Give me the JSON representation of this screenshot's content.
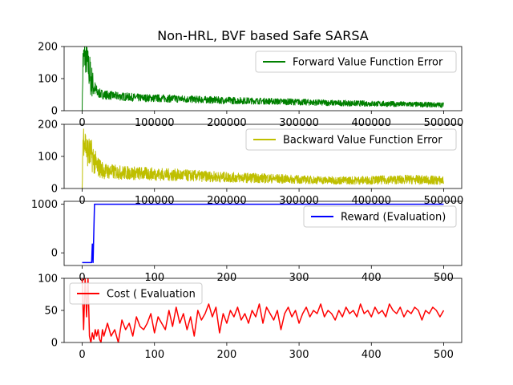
{
  "title": "Non-HRL, BVF based Safe SARSA",
  "chart_data": [
    {
      "type": "line",
      "series": [
        {
          "name": "Forward Value Function Error",
          "color": "#008000",
          "noise": true,
          "x": [
            0,
            1000,
            3000,
            6000,
            10000,
            12000,
            15000,
            18000,
            22000,
            30000,
            50000,
            80000,
            120000,
            160000,
            200000,
            250000,
            300000,
            350000,
            400000,
            450000,
            500000
          ],
          "values": [
            0,
            150,
            170,
            160,
            120,
            100,
            80,
            65,
            55,
            50,
            45,
            40,
            38,
            35,
            32,
            30,
            27,
            24,
            22,
            20,
            18
          ],
          "spread": [
            0,
            60,
            50,
            50,
            60,
            60,
            40,
            25,
            15,
            14,
            13,
            12,
            12,
            11,
            11,
            10,
            10,
            9,
            9,
            8,
            8
          ]
        }
      ],
      "xlim": [
        -25000,
        525000
      ],
      "ylim": [
        0,
        200
      ],
      "xticks": [
        0,
        100000,
        200000,
        300000,
        400000,
        500000
      ],
      "xtick_labels": [
        "0",
        "100000",
        "200000",
        "300000",
        "400000",
        "500000"
      ],
      "yticks": [
        0,
        100,
        200
      ],
      "ytick_labels": [
        "0",
        "100",
        "200"
      ],
      "legend": "upper-right"
    },
    {
      "type": "line",
      "series": [
        {
          "name": "Backward Value Function Error",
          "color": "#bfbf00",
          "noise": true,
          "x": [
            0,
            1000,
            3000,
            6000,
            10000,
            14000,
            20000,
            30000,
            50000,
            100000,
            150000,
            200000,
            250000,
            300000,
            350000,
            400000,
            450000,
            500000
          ],
          "values": [
            0,
            150,
            160,
            120,
            110,
            100,
            70,
            55,
            50,
            45,
            40,
            35,
            32,
            28,
            25,
            26,
            28,
            25
          ],
          "spread": [
            0,
            60,
            50,
            50,
            50,
            50,
            35,
            25,
            22,
            20,
            18,
            16,
            15,
            13,
            12,
            13,
            14,
            14
          ]
        }
      ],
      "xlim": [
        -25000,
        525000
      ],
      "ylim": [
        0,
        200
      ],
      "xticks": [
        0,
        100000,
        200000,
        300000,
        400000,
        500000
      ],
      "xtick_labels": [
        "0",
        "100000",
        "200000",
        "300000",
        "400000",
        "500000"
      ],
      "yticks": [
        0,
        100,
        200
      ],
      "ytick_labels": [
        "0",
        "100",
        "200"
      ],
      "legend": "upper-right"
    },
    {
      "type": "line",
      "series": [
        {
          "name": "Reward (Evaluation)",
          "color": "#0000ff",
          "noise": false,
          "x": [
            0,
            13,
            14,
            15,
            16,
            17,
            18,
            500
          ],
          "values": [
            -200,
            -200,
            180,
            -200,
            400,
            1000,
            1000,
            1000
          ]
        }
      ],
      "xlim": [
        -25,
        525
      ],
      "ylim": [
        -260,
        1060
      ],
      "xticks": [
        0,
        100,
        200,
        300,
        400,
        500
      ],
      "xtick_labels": [
        "0",
        "100",
        "200",
        "300",
        "400",
        "500"
      ],
      "yticks": [
        0,
        1000
      ],
      "ytick_labels": [
        "0",
        "1000"
      ],
      "legend": "upper-right"
    },
    {
      "type": "line",
      "series": [
        {
          "name": "Cost ( Evaluation",
          "color": "#ff0000",
          "noise": false,
          "x": [
            0,
            2,
            4,
            6,
            8,
            10,
            12,
            14,
            16,
            18,
            20,
            22,
            24,
            26,
            28,
            30,
            35,
            40,
            45,
            50,
            55,
            60,
            65,
            70,
            75,
            80,
            85,
            90,
            95,
            100,
            105,
            110,
            115,
            120,
            125,
            130,
            135,
            140,
            145,
            150,
            155,
            160,
            165,
            170,
            175,
            180,
            185,
            190,
            195,
            200,
            205,
            210,
            215,
            220,
            225,
            230,
            235,
            240,
            245,
            250,
            255,
            260,
            265,
            270,
            275,
            280,
            285,
            290,
            295,
            300,
            305,
            310,
            315,
            320,
            325,
            330,
            335,
            340,
            345,
            350,
            355,
            360,
            365,
            370,
            375,
            380,
            385,
            390,
            395,
            400,
            405,
            410,
            415,
            420,
            425,
            430,
            435,
            440,
            445,
            450,
            455,
            460,
            465,
            470,
            475,
            480,
            485,
            490,
            495,
            500
          ],
          "values": [
            100,
            20,
            100,
            40,
            100,
            10,
            0,
            15,
            5,
            20,
            10,
            20,
            5,
            0,
            20,
            10,
            30,
            10,
            20,
            0,
            35,
            20,
            30,
            10,
            40,
            25,
            20,
            30,
            45,
            15,
            40,
            30,
            20,
            50,
            25,
            55,
            30,
            45,
            20,
            40,
            10,
            50,
            35,
            45,
            60,
            40,
            55,
            15,
            45,
            30,
            50,
            40,
            55,
            35,
            45,
            30,
            50,
            40,
            60,
            30,
            55,
            45,
            35,
            50,
            20,
            45,
            55,
            40,
            50,
            30,
            45,
            55,
            40,
            50,
            45,
            60,
            40,
            50,
            45,
            35,
            50,
            40,
            55,
            45,
            50,
            40,
            60,
            45,
            50,
            40,
            55,
            45,
            50,
            40,
            60,
            50,
            45,
            55,
            40,
            50,
            45,
            55,
            50,
            35,
            50,
            45,
            55,
            50,
            40,
            50
          ]
        }
      ],
      "xlim": [
        -25,
        525
      ],
      "ylim": [
        0,
        100
      ],
      "xticks": [
        0,
        100,
        200,
        300,
        400,
        500
      ],
      "xtick_labels": [
        "0",
        "100",
        "200",
        "300",
        "400",
        "500"
      ],
      "yticks": [
        0,
        50,
        100
      ],
      "ytick_labels": [
        "0",
        "50",
        "100"
      ],
      "legend": "upper-left"
    }
  ]
}
